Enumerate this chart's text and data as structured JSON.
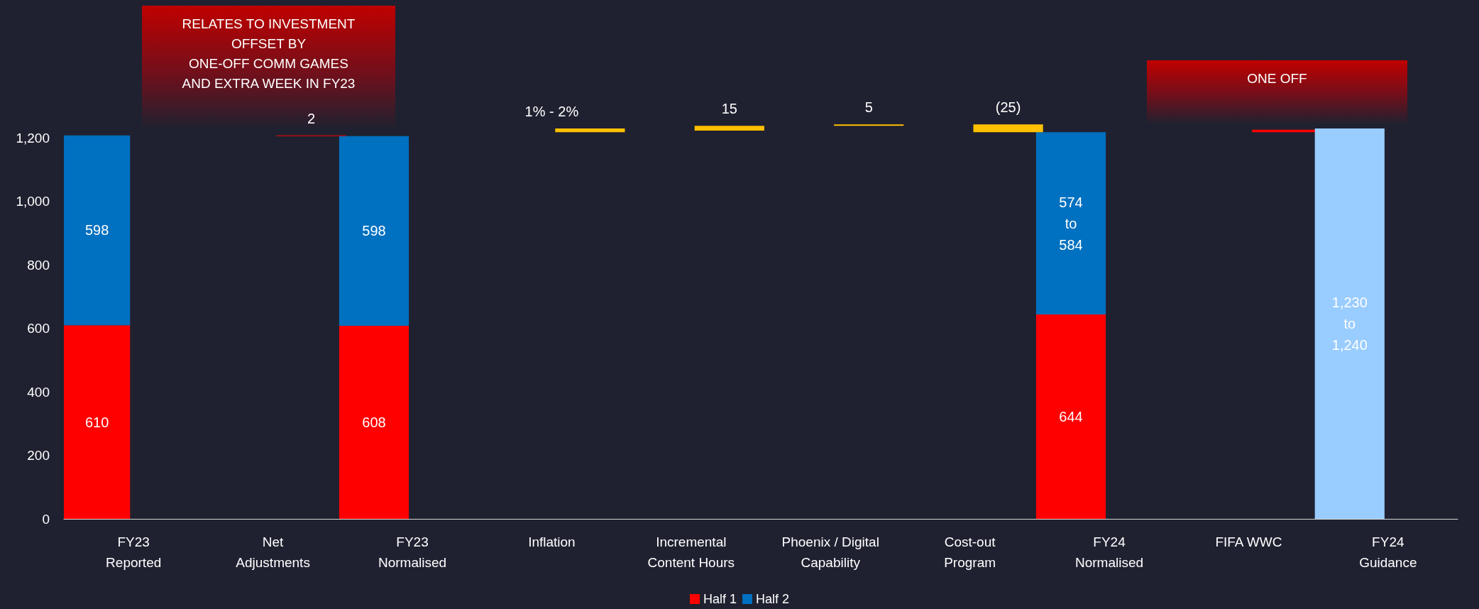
{
  "chart_data": {
    "type": "bar",
    "stacked": true,
    "categories": [
      "FY23\nReported",
      "Net\nAdjustments",
      "FY23\nNormalised",
      "Inflation",
      "Incremental\nContent Hours",
      "Phoenix / Digital\nCapability",
      "Cost-out\nProgram",
      "FY24\nNormalised",
      "FIFA WWC",
      "FY24\nGuidance"
    ],
    "series": [
      {
        "name": "Half 1",
        "color": "#ff0000",
        "values": [
          610,
          null,
          608,
          null,
          null,
          null,
          null,
          644,
          null,
          null
        ],
        "value_labels": [
          "610",
          null,
          "608",
          null,
          null,
          null,
          null,
          "644",
          null,
          null
        ]
      },
      {
        "name": "Half 2",
        "color": "#0070c0",
        "values": [
          598,
          null,
          598,
          null,
          null,
          null,
          null,
          574,
          null,
          null
        ],
        "value_labels": [
          "598",
          null,
          "598",
          null,
          null,
          null,
          null,
          "574\nto\n584",
          null,
          null
        ]
      },
      {
        "type": "bar",
        "base": [
          null,
          1206,
          null,
          1218,
          1223,
          1238,
          1218,
          null,
          1218,
          null
        ],
        "values": [
          null,
          2,
          null,
          12,
          15,
          5,
          25,
          null,
          8,
          null
        ],
        "colors": [
          null,
          "#ff0000",
          null,
          "#ffc000",
          "#ffc000",
          "#ffc000",
          "#ffc000",
          null,
          "#ff0000",
          null
        ],
        "value_labels": [
          null,
          "2",
          null,
          null,
          "15",
          "5",
          "(25)",
          null,
          null,
          null
        ]
      },
      {
        "color": "#99ccff",
        "values": [
          null,
          null,
          null,
          null,
          null,
          null,
          null,
          null,
          null,
          1230
        ],
        "value_labels": [
          null,
          null,
          null,
          null,
          null,
          null,
          null,
          null,
          null,
          "1,230\nto\n1,240"
        ]
      }
    ],
    "ylim": [
      0,
      1250
    ],
    "yticks": [
      0,
      {
        "value": 200,
        "label": "200"
      },
      {
        "value": 400,
        "label": "400"
      },
      {
        "value": 600,
        "label": "600"
      },
      {
        "value": 800,
        "label": "800"
      },
      {
        "value": 1000,
        "label": "1,000"
      },
      {
        "value": 1200,
        "label": "1,200"
      }
    ],
    "annotations": [
      "RELATES TO INVESTMENT\nOFFSET BY\nONE-OFF COMM GAMES\nAND EXTRA WEEK IN FY23",
      "ONE OFF",
      {
        "text": "1% - 2%",
        "x": "Inflation",
        "y": 1230
      }
    ],
    "grid": false,
    "legend": "bottom"
  }
}
